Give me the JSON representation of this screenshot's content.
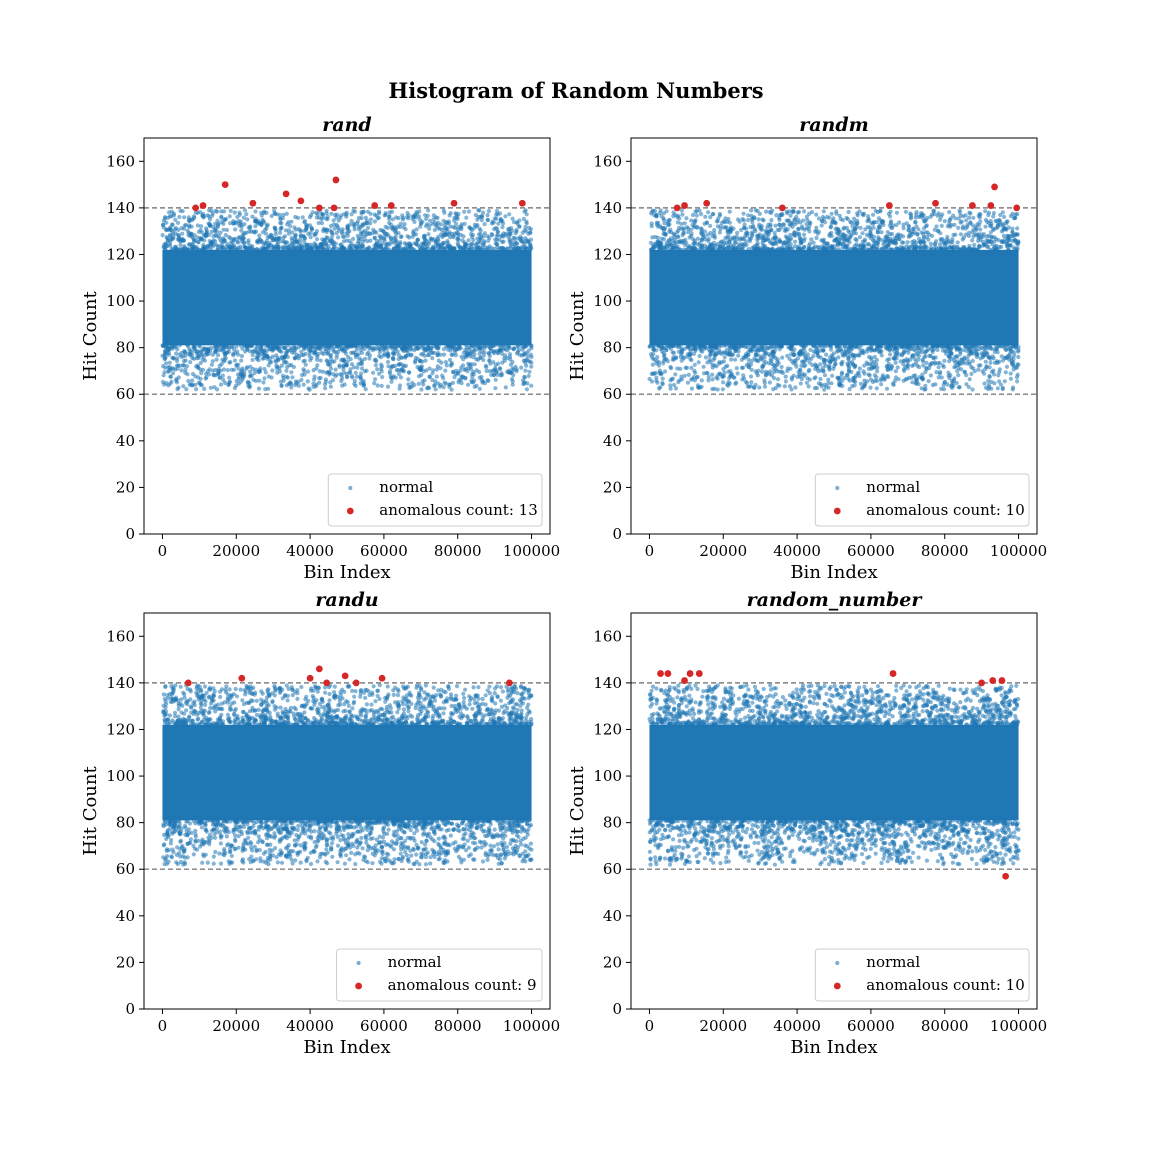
{
  "figure": {
    "title": "Histogram of Random Numbers"
  },
  "colors": {
    "normal": "#1f77b4",
    "anomalous": "#d62728",
    "threshold": "#808080"
  },
  "chart_data": [
    {
      "type": "scatter",
      "title": "rand",
      "xlabel": "Bin Index",
      "ylabel": "Hit Count",
      "xlim": [
        -5000,
        105000
      ],
      "ylim": [
        0,
        170
      ],
      "xticks": [
        0,
        20000,
        40000,
        60000,
        80000,
        100000
      ],
      "xtick_labels": [
        "0",
        "20000",
        "40000",
        "60000",
        "80000",
        "100000"
      ],
      "yticks": [
        0,
        20,
        40,
        60,
        80,
        100,
        120,
        140,
        160
      ],
      "ytick_labels": [
        "0",
        "20",
        "40",
        "60",
        "80",
        "100",
        "120",
        "140",
        "160"
      ],
      "thresholds": [
        60,
        140
      ],
      "legend_position": "lower-right",
      "normal_series": {
        "name": "normal",
        "x_range": [
          0,
          100000
        ],
        "core_range": [
          81,
          122
        ],
        "spread_range": [
          62,
          139
        ]
      },
      "anomalous_series": {
        "name": "anomalous count: 13",
        "points": [
          [
            9000,
            140
          ],
          [
            11000,
            141
          ],
          [
            17000,
            150
          ],
          [
            24500,
            142
          ],
          [
            33500,
            146
          ],
          [
            37500,
            143
          ],
          [
            42500,
            140
          ],
          [
            46500,
            140
          ],
          [
            47000,
            152
          ],
          [
            57500,
            141
          ],
          [
            62000,
            141
          ],
          [
            79000,
            142
          ],
          [
            97500,
            142
          ]
        ]
      }
    },
    {
      "type": "scatter",
      "title": "randm",
      "xlabel": "Bin Index",
      "ylabel": "Hit Count",
      "xlim": [
        -5000,
        105000
      ],
      "ylim": [
        0,
        170
      ],
      "xticks": [
        0,
        20000,
        40000,
        60000,
        80000,
        100000
      ],
      "xtick_labels": [
        "0",
        "20000",
        "40000",
        "60000",
        "80000",
        "100000"
      ],
      "yticks": [
        0,
        20,
        40,
        60,
        80,
        100,
        120,
        140,
        160
      ],
      "ytick_labels": [
        "0",
        "20",
        "40",
        "60",
        "80",
        "100",
        "120",
        "140",
        "160"
      ],
      "thresholds": [
        60,
        140
      ],
      "legend_position": "lower-right",
      "normal_series": {
        "name": "normal",
        "x_range": [
          0,
          100000
        ],
        "core_range": [
          81,
          122
        ],
        "spread_range": [
          62,
          139
        ]
      },
      "anomalous_series": {
        "name": "anomalous count: 10",
        "points": [
          [
            7500,
            140
          ],
          [
            9500,
            141
          ],
          [
            15500,
            142
          ],
          [
            36000,
            140
          ],
          [
            65000,
            141
          ],
          [
            77500,
            142
          ],
          [
            87500,
            141
          ],
          [
            92500,
            141
          ],
          [
            93500,
            149
          ],
          [
            99500,
            140
          ]
        ]
      }
    },
    {
      "type": "scatter",
      "title": "randu",
      "xlabel": "Bin Index",
      "ylabel": "Hit Count",
      "xlim": [
        -5000,
        105000
      ],
      "ylim": [
        0,
        170
      ],
      "xticks": [
        0,
        20000,
        40000,
        60000,
        80000,
        100000
      ],
      "xtick_labels": [
        "0",
        "20000",
        "40000",
        "60000",
        "80000",
        "100000"
      ],
      "yticks": [
        0,
        20,
        40,
        60,
        80,
        100,
        120,
        140,
        160
      ],
      "ytick_labels": [
        "0",
        "20",
        "40",
        "60",
        "80",
        "100",
        "120",
        "140",
        "160"
      ],
      "thresholds": [
        60,
        140
      ],
      "legend_position": "lower-right",
      "normal_series": {
        "name": "normal",
        "x_range": [
          0,
          100000
        ],
        "core_range": [
          81,
          122
        ],
        "spread_range": [
          62,
          139
        ]
      },
      "anomalous_series": {
        "name": "anomalous count: 9",
        "points": [
          [
            7000,
            140
          ],
          [
            21500,
            142
          ],
          [
            40000,
            142
          ],
          [
            42500,
            146
          ],
          [
            44500,
            140
          ],
          [
            49500,
            143
          ],
          [
            52500,
            140
          ],
          [
            59500,
            142
          ],
          [
            94000,
            140
          ]
        ]
      }
    },
    {
      "type": "scatter",
      "title": "random_number",
      "xlabel": "Bin Index",
      "ylabel": "Hit Count",
      "xlim": [
        -5000,
        105000
      ],
      "ylim": [
        0,
        170
      ],
      "xticks": [
        0,
        20000,
        40000,
        60000,
        80000,
        100000
      ],
      "xtick_labels": [
        "0",
        "20000",
        "40000",
        "60000",
        "80000",
        "100000"
      ],
      "yticks": [
        0,
        20,
        40,
        60,
        80,
        100,
        120,
        140,
        160
      ],
      "ytick_labels": [
        "0",
        "20",
        "40",
        "60",
        "80",
        "100",
        "120",
        "140",
        "160"
      ],
      "thresholds": [
        60,
        140
      ],
      "legend_position": "lower-right",
      "normal_series": {
        "name": "normal",
        "x_range": [
          0,
          100000
        ],
        "core_range": [
          81,
          122
        ],
        "spread_range": [
          62,
          139
        ]
      },
      "anomalous_series": {
        "name": "anomalous count: 10",
        "points": [
          [
            3000,
            144
          ],
          [
            5000,
            144
          ],
          [
            9500,
            141
          ],
          [
            11000,
            144
          ],
          [
            13500,
            144
          ],
          [
            66000,
            144
          ],
          [
            90000,
            140
          ],
          [
            93000,
            141
          ],
          [
            95500,
            141
          ],
          [
            96500,
            57
          ]
        ]
      }
    }
  ]
}
